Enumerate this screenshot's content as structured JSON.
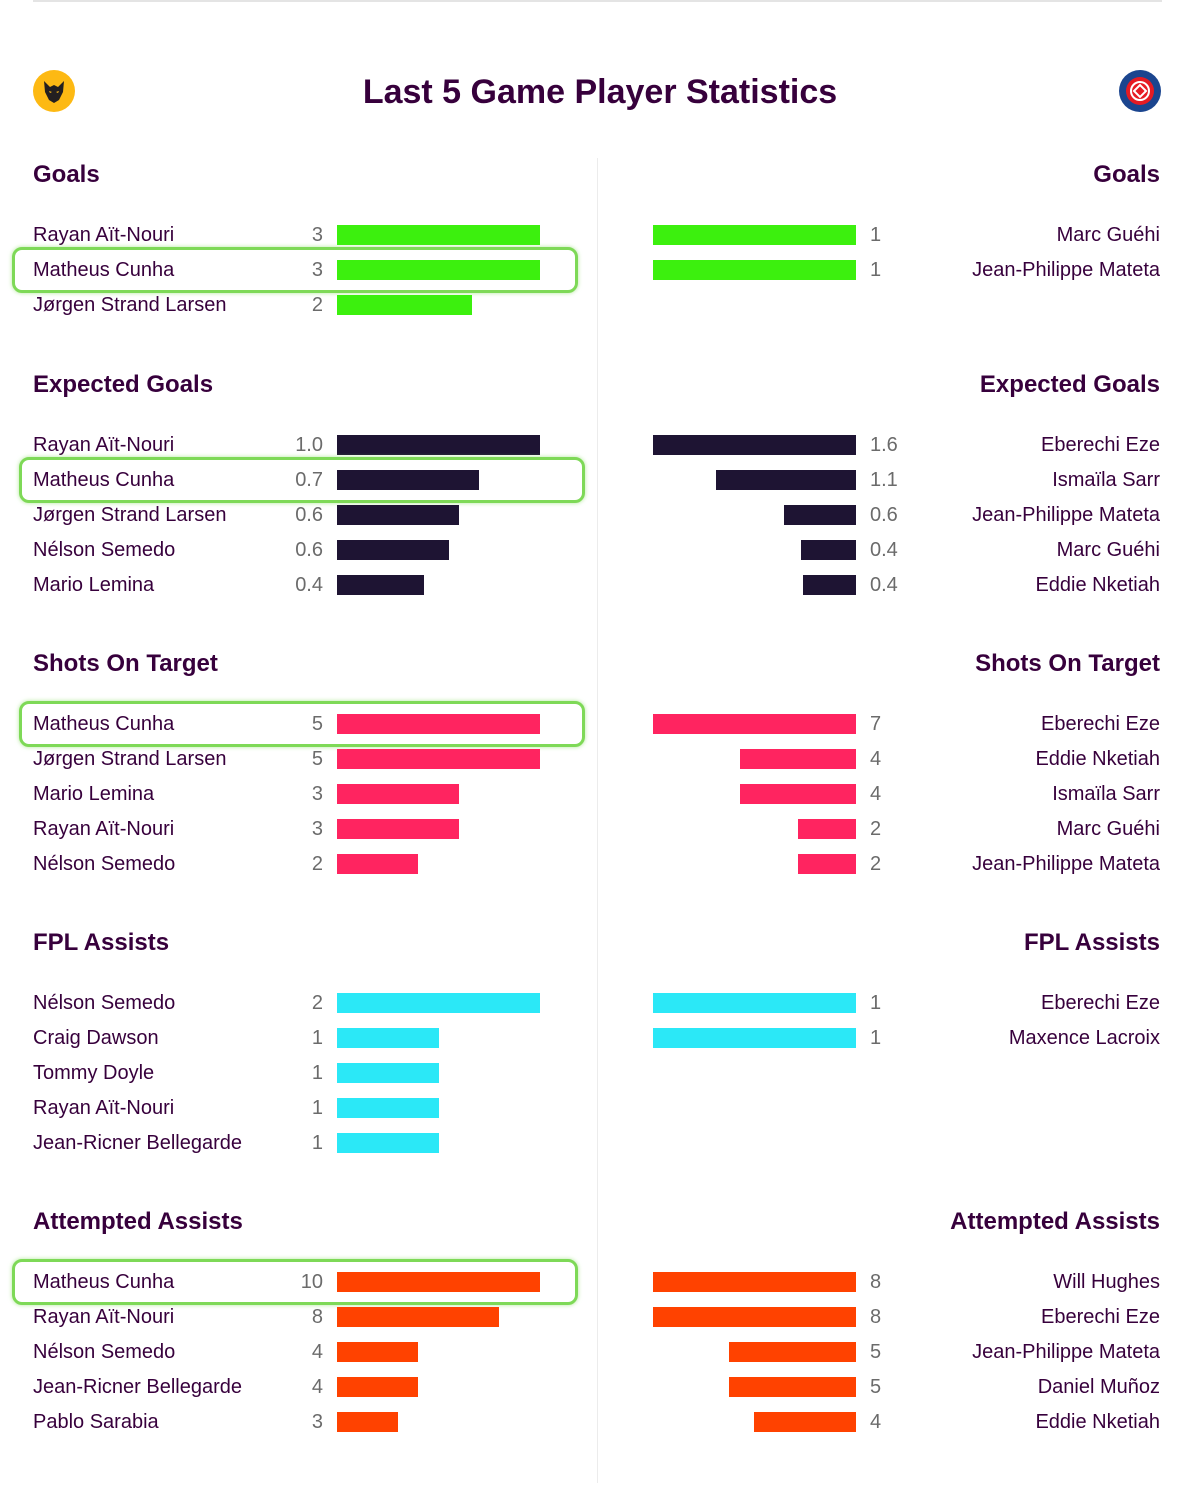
{
  "title": "Last 5 Game Player Statistics",
  "teams": {
    "left": {
      "logo_icon": "wolves-crest-icon"
    },
    "right": {
      "logo_icon": "crystal-palace-crest-icon"
    }
  },
  "colors": {
    "title": "#37003c",
    "highlight_box": "#7ed957",
    "goals": "#3cf00e",
    "expected_goals": "#1e1433",
    "shots_on_target": "#ff2460",
    "fpl_assists": "#2be8f7",
    "attempted_assists": "#ff4200"
  },
  "sections": [
    {
      "title": "Goals",
      "color_key": "goals",
      "left": [
        {
          "name": "Rayan Aït-Nouri",
          "value": "3",
          "amount": 3
        },
        {
          "name": "Matheus Cunha",
          "value": "3",
          "amount": 3,
          "highlight": true
        },
        {
          "name": "Jørgen Strand Larsen",
          "value": "2",
          "amount": 2
        }
      ],
      "right": [
        {
          "name": "Marc Guéhi",
          "value": "1",
          "amount": 1
        },
        {
          "name": "Jean-Philippe Mateta",
          "value": "1",
          "amount": 1
        }
      ]
    },
    {
      "title": "Expected Goals",
      "color_key": "expected_goals",
      "left": [
        {
          "name": "Rayan Aït-Nouri",
          "value": "1.0",
          "amount": 1.0
        },
        {
          "name": "Matheus Cunha",
          "value": "0.7",
          "amount": 0.7,
          "highlight": true
        },
        {
          "name": "Jørgen Strand Larsen",
          "value": "0.6",
          "amount": 0.6
        },
        {
          "name": "Nélson Semedo",
          "value": "0.6",
          "amount": 0.55
        },
        {
          "name": "Mario Lemina",
          "value": "0.4",
          "amount": 0.43
        }
      ],
      "right": [
        {
          "name": "Eberechi Eze",
          "value": "1.6",
          "amount": 1.6
        },
        {
          "name": "Ismaïla Sarr",
          "value": "1.1",
          "amount": 1.1
        },
        {
          "name": "Jean-Philippe Mateta",
          "value": "0.6",
          "amount": 0.57
        },
        {
          "name": "Marc Guéhi",
          "value": "0.4",
          "amount": 0.43
        },
        {
          "name": "Eddie Nketiah",
          "value": "0.4",
          "amount": 0.42
        }
      ]
    },
    {
      "title": "Shots On Target",
      "color_key": "shots_on_target",
      "left": [
        {
          "name": "Matheus Cunha",
          "value": "5",
          "amount": 5,
          "highlight": true
        },
        {
          "name": "Jørgen Strand Larsen",
          "value": "5",
          "amount": 5
        },
        {
          "name": "Mario Lemina",
          "value": "3",
          "amount": 3
        },
        {
          "name": "Rayan Aït-Nouri",
          "value": "3",
          "amount": 3
        },
        {
          "name": "Nélson Semedo",
          "value": "2",
          "amount": 2
        }
      ],
      "right": [
        {
          "name": "Eberechi Eze",
          "value": "7",
          "amount": 7
        },
        {
          "name": "Eddie Nketiah",
          "value": "4",
          "amount": 4
        },
        {
          "name": "Ismaïla Sarr",
          "value": "4",
          "amount": 4
        },
        {
          "name": "Marc Guéhi",
          "value": "2",
          "amount": 2
        },
        {
          "name": "Jean-Philippe Mateta",
          "value": "2",
          "amount": 2
        }
      ]
    },
    {
      "title": "FPL Assists",
      "color_key": "fpl_assists",
      "left": [
        {
          "name": "Nélson Semedo",
          "value": "2",
          "amount": 2
        },
        {
          "name": "Craig Dawson",
          "value": "1",
          "amount": 1
        },
        {
          "name": "Tommy Doyle",
          "value": "1",
          "amount": 1
        },
        {
          "name": "Rayan Aït-Nouri",
          "value": "1",
          "amount": 1
        },
        {
          "name": "Jean-Ricner Bellegarde",
          "value": "1",
          "amount": 1
        }
      ],
      "right": [
        {
          "name": "Eberechi Eze",
          "value": "1",
          "amount": 1
        },
        {
          "name": "Maxence Lacroix",
          "value": "1",
          "amount": 1
        }
      ]
    },
    {
      "title": "Attempted Assists",
      "color_key": "attempted_assists",
      "left": [
        {
          "name": "Matheus Cunha",
          "value": "10",
          "amount": 10,
          "highlight": true
        },
        {
          "name": "Rayan Aït-Nouri",
          "value": "8",
          "amount": 8
        },
        {
          "name": "Nélson Semedo",
          "value": "4",
          "amount": 4
        },
        {
          "name": "Jean-Ricner Bellegarde",
          "value": "4",
          "amount": 4
        },
        {
          "name": "Pablo Sarabia",
          "value": "3",
          "amount": 3
        }
      ],
      "right": [
        {
          "name": "Will Hughes",
          "value": "8",
          "amount": 8
        },
        {
          "name": "Eberechi Eze",
          "value": "8",
          "amount": 8
        },
        {
          "name": "Jean-Philippe Mateta",
          "value": "5",
          "amount": 5
        },
        {
          "name": "Daniel Muñoz",
          "value": "5",
          "amount": 5
        },
        {
          "name": "Eddie Nketiah",
          "value": "4",
          "amount": 4
        }
      ]
    }
  ]
}
